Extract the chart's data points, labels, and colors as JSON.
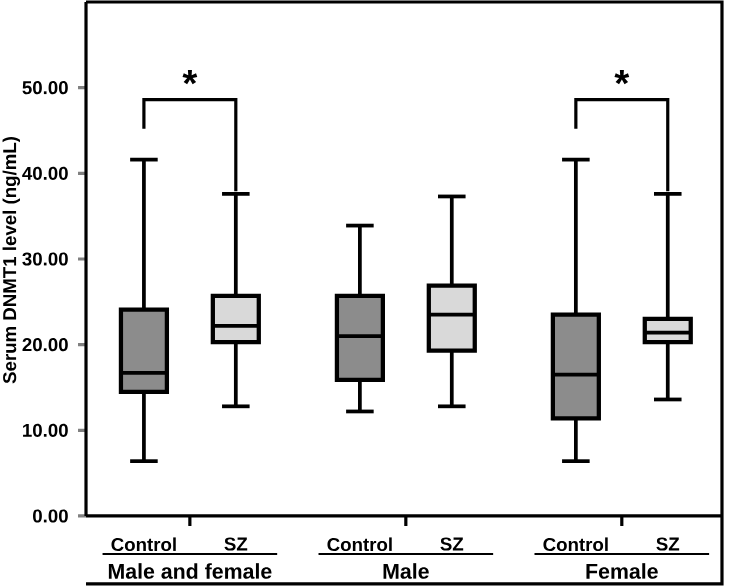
{
  "chart_data": {
    "type": "box",
    "ylabel": "Serum DNMT1 level (ng/mL)",
    "categories": [
      "Control",
      "SZ",
      "Control",
      "SZ",
      "Control",
      "SZ"
    ],
    "boxes": [
      {
        "low": 6.4,
        "q1": 14.5,
        "median": 16.7,
        "q3": 24.1,
        "high": 41.6
      },
      {
        "low": 12.8,
        "q1": 20.3,
        "median": 22.2,
        "q3": 25.7,
        "high": 37.6
      },
      {
        "low": 12.2,
        "q1": 15.9,
        "median": 21.0,
        "q3": 25.7,
        "high": 33.9
      },
      {
        "low": 12.8,
        "q1": 19.3,
        "median": 23.5,
        "q3": 26.9,
        "high": 37.3
      },
      {
        "low": 6.4,
        "q1": 11.4,
        "median": 16.5,
        "q3": 23.5,
        "high": 41.6
      },
      {
        "low": 13.6,
        "q1": 20.3,
        "median": 21.4,
        "q3": 23.0,
        "high": 37.6
      }
    ],
    "colors": [
      "#8c8c8c",
      "#d9d9d9",
      "#8c8c8c",
      "#d9d9d9",
      "#8c8c8c",
      "#d9d9d9"
    ],
    "ylim": [
      0,
      60
    ],
    "yticks": [
      {
        "value": 0,
        "label": "0.00"
      },
      {
        "value": 10,
        "label": "10.00"
      },
      {
        "value": 20,
        "label": "20.00"
      },
      {
        "value": 30,
        "label": "30.00"
      },
      {
        "value": 40,
        "label": "40.00"
      },
      {
        "value": 50,
        "label": "50.00"
      }
    ],
    "annotations": [
      "*",
      "*",
      "Male and female",
      "Male",
      "Female"
    ]
  }
}
